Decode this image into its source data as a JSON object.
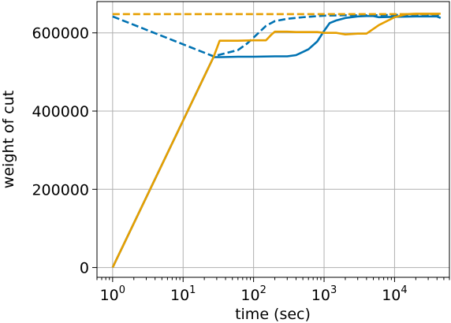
{
  "chart_data": {
    "type": "line",
    "title": "",
    "xlabel": "time (sec)",
    "ylabel": "weight of cut",
    "xscale": "log",
    "xlim": [
      0.6,
      60000
    ],
    "ylim": [
      -25000,
      680000
    ],
    "x_ticks": [
      {
        "base": "10",
        "exp": "0",
        "value": 1
      },
      {
        "base": "10",
        "exp": "1",
        "value": 10
      },
      {
        "base": "10",
        "exp": "2",
        "value": 100
      },
      {
        "base": "10",
        "exp": "3",
        "value": 1000
      },
      {
        "base": "10",
        "exp": "4",
        "value": 10000
      }
    ],
    "y_ticks": [
      {
        "label": "0",
        "value": 0
      },
      {
        "label": "200000",
        "value": 200000
      },
      {
        "label": "400000",
        "value": 400000
      },
      {
        "label": "600000",
        "value": 600000
      }
    ],
    "grid": true,
    "legend": "none",
    "series": [
      {
        "color": "#0072B2",
        "style": "solid",
        "x": [
          1,
          27,
          35,
          60,
          100,
          200,
          300,
          400,
          600,
          800,
          1000,
          1200,
          1500,
          2000,
          3000,
          4000,
          5000,
          6000,
          10000,
          20000,
          40000,
          45000
        ],
        "y": [
          0,
          538000,
          538000,
          539000,
          539000,
          540000,
          540000,
          543000,
          558000,
          578000,
          605000,
          625000,
          632000,
          638000,
          642000,
          643000,
          643000,
          640000,
          641000,
          642000,
          642000,
          638000
        ]
      },
      {
        "color": "#0072B2",
        "style": "dashed",
        "x": [
          1,
          27,
          40,
          60,
          80,
          100,
          150,
          200,
          300,
          500,
          1000,
          2000,
          5000,
          10000,
          20000,
          45000
        ],
        "y": [
          642000,
          540000,
          548000,
          556000,
          572000,
          588000,
          618000,
          630000,
          636000,
          640000,
          644000,
          645000,
          645000,
          646000,
          646000,
          646000
        ]
      },
      {
        "color": "#E69F00",
        "style": "solid",
        "x": [
          1,
          27,
          33,
          60,
          100,
          150,
          180,
          200,
          300,
          400,
          600,
          800,
          1000,
          1500,
          2000,
          3000,
          4000,
          6000,
          10000,
          15000,
          20000,
          45000
        ],
        "y": [
          0,
          538000,
          580000,
          580000,
          581000,
          581000,
          596000,
          603000,
          603000,
          602000,
          602000,
          602000,
          600000,
          600000,
          596000,
          598000,
          598000,
          620000,
          640000,
          648000,
          649000,
          649000
        ]
      },
      {
        "color": "#E69F00",
        "style": "dashed",
        "x": [
          1,
          45000
        ],
        "y": [
          648000,
          648000
        ]
      }
    ]
  }
}
